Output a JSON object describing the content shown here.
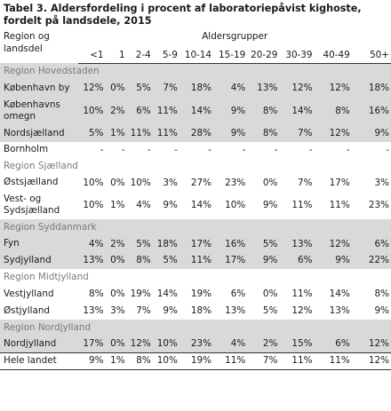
{
  "title_line1": "Tabel 3. Aldersfordeling i procent af laboratoriepåvist kighoste,",
  "title_line2": "fordelt på landsdele, 2015",
  "header": {
    "region_label": "Region og landsdel",
    "group_label": "Aldersgrupper",
    "age_groups": [
      "<1",
      "1",
      "2-4",
      "5-9",
      "10-14",
      "15-19",
      "20-29",
      "30-39",
      "40-49",
      "50+"
    ]
  },
  "rows": [
    {
      "type": "region",
      "label": "Region Hovedstaden",
      "shade": true
    },
    {
      "type": "data",
      "label": "København by",
      "shade": true,
      "values": [
        "12%",
        "0%",
        "5%",
        "7%",
        "18%",
        "4%",
        "13%",
        "12%",
        "12%",
        "18%"
      ]
    },
    {
      "type": "data",
      "label": "Københavns omegn",
      "shade": true,
      "values": [
        "10%",
        "2%",
        "6%",
        "11%",
        "14%",
        "9%",
        "8%",
        "14%",
        "8%",
        "16%"
      ]
    },
    {
      "type": "data",
      "label": "Nordsjælland",
      "shade": true,
      "values": [
        "5%",
        "1%",
        "11%",
        "11%",
        "28%",
        "9%",
        "8%",
        "7%",
        "12%",
        "9%"
      ]
    },
    {
      "type": "data",
      "label": "Bornholm",
      "shade": false,
      "values": [
        "-",
        "-",
        "-",
        "-",
        "-",
        "-",
        "-",
        "-",
        "-",
        "-"
      ]
    },
    {
      "type": "region",
      "label": "Region Sjælland",
      "shade": false
    },
    {
      "type": "data",
      "label": "Østsjælland",
      "shade": false,
      "values": [
        "10%",
        "0%",
        "10%",
        "3%",
        "27%",
        "23%",
        "0%",
        "7%",
        "17%",
        "3%"
      ]
    },
    {
      "type": "data",
      "label": "Vest- og Sydsjælland",
      "shade": false,
      "values": [
        "10%",
        "1%",
        "4%",
        "9%",
        "14%",
        "10%",
        "9%",
        "11%",
        "11%",
        "23%"
      ]
    },
    {
      "type": "region",
      "label": "Region Syddanmark",
      "shade": true
    },
    {
      "type": "data",
      "label": "Fyn",
      "shade": true,
      "values": [
        "4%",
        "2%",
        "5%",
        "18%",
        "17%",
        "16%",
        "5%",
        "13%",
        "12%",
        "6%"
      ]
    },
    {
      "type": "data",
      "label": "Sydjylland",
      "shade": true,
      "values": [
        "13%",
        "0%",
        "8%",
        "5%",
        "11%",
        "17%",
        "9%",
        "6%",
        "9%",
        "22%"
      ]
    },
    {
      "type": "region",
      "label": "Region Midtjylland",
      "shade": false
    },
    {
      "type": "data",
      "label": "Vestjylland",
      "shade": false,
      "values": [
        "8%",
        "0%",
        "19%",
        "14%",
        "19%",
        "6%",
        "0%",
        "11%",
        "14%",
        "8%"
      ]
    },
    {
      "type": "data",
      "label": "Østjylland",
      "shade": false,
      "values": [
        "13%",
        "3%",
        "7%",
        "9%",
        "18%",
        "13%",
        "5%",
        "12%",
        "13%",
        "9%"
      ]
    },
    {
      "type": "region",
      "label": "Region Nordjylland",
      "shade": true
    },
    {
      "type": "data",
      "label": "Nordjylland",
      "shade": true,
      "values": [
        "17%",
        "0%",
        "12%",
        "10%",
        "23%",
        "4%",
        "2%",
        "15%",
        "6%",
        "12%"
      ]
    }
  ],
  "total": {
    "label": "Hele landet",
    "values": [
      "9%",
      "1%",
      "8%",
      "10%",
      "19%",
      "11%",
      "7%",
      "11%",
      "11%",
      "12%"
    ]
  }
}
